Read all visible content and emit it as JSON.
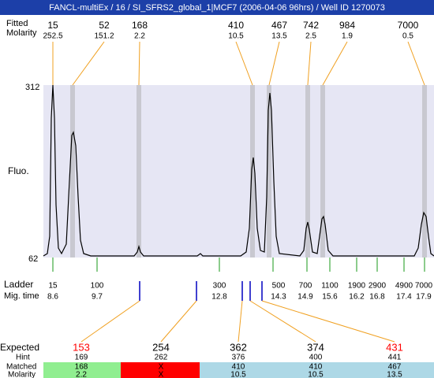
{
  "title": "FANCL-multiEx / 16 / SI_SFRS2_global_1|MCF7 (2006-04-06 96hrs) / Well ID 1270073",
  "peaks": {
    "size_label": "Fitted",
    "molarity_label": "Molarity",
    "sizes": [
      "15",
      "52",
      "168",
      "410",
      "467",
      "742",
      "984",
      "7000"
    ],
    "molarity": [
      "252.5",
      "151.2",
      "2.2",
      "10.5",
      "13.5",
      "2.5",
      "1.9",
      "0.5"
    ]
  },
  "fluo": {
    "label": "Fluo.",
    "ymax": "312",
    "ymin": "62"
  },
  "ladder": {
    "label": "Ladder",
    "mig_label": "Mig. time",
    "sizes": [
      "15",
      "100",
      "300",
      "500",
      "700",
      "1100",
      "1900",
      "2900",
      "4900",
      "7000"
    ],
    "mig_times": [
      "8.6",
      "9.7",
      "12.8",
      "14.3",
      "14.9",
      "15.6",
      "16.2",
      "16.8",
      "17.4",
      "17.9"
    ]
  },
  "expected": {
    "label": "Expected",
    "values": [
      "153",
      "254",
      "362",
      "374",
      "431"
    ],
    "colors": [
      "#ff0000",
      "#000000",
      "#000000",
      "#000000",
      "#ff0000"
    ],
    "hint_label": "Hint",
    "hint": [
      "169",
      "262",
      "376",
      "400",
      "441"
    ],
    "matched_label": "Matched",
    "matched": [
      "168",
      "X",
      "410",
      "410",
      "467"
    ],
    "matched_colors": [
      "#90ee90",
      "#ff0000",
      "#add8e6",
      "#add8e6",
      "#add8e6"
    ],
    "molarity_label": "Molarity",
    "molarity": [
      "2.2",
      "X",
      "10.5",
      "10.5",
      "13.5"
    ]
  }
}
